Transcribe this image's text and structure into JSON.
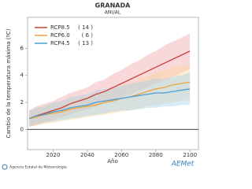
{
  "chart_data": {
    "type": "line",
    "title": "GRANADA",
    "subtitle": "ANUAL",
    "y_label": "Cambio de la temperatura máxima (ºC)",
    "x_label": "Año",
    "x": [
      2006,
      2010,
      2015,
      2020,
      2025,
      2030,
      2035,
      2040,
      2045,
      2050,
      2055,
      2060,
      2065,
      2070,
      2075,
      2080,
      2085,
      2090,
      2095,
      2100
    ],
    "series": [
      {
        "name": "RCP8.5",
        "members": {
          "value": 14,
          "label": "( 14 )"
        },
        "color": "#c8423a",
        "band_color": "#f2a9ab",
        "values": [
          0.8,
          1.0,
          1.2,
          1.4,
          1.6,
          1.9,
          2.1,
          2.3,
          2.6,
          2.8,
          3.1,
          3.4,
          3.7,
          4.0,
          4.3,
          4.6,
          4.9,
          5.2,
          5.5,
          5.8
        ],
        "lower": [
          0.2,
          0.3,
          0.5,
          0.7,
          0.9,
          1.1,
          1.3,
          1.5,
          1.7,
          1.9,
          2.1,
          2.4,
          2.6,
          2.9,
          3.1,
          3.4,
          3.6,
          3.9,
          4.2,
          4.5
        ],
        "upper": [
          1.4,
          1.7,
          1.9,
          2.1,
          2.4,
          2.7,
          2.9,
          3.1,
          3.5,
          3.7,
          4.1,
          4.4,
          4.8,
          5.1,
          5.5,
          5.8,
          6.2,
          6.5,
          6.8,
          7.1
        ]
      },
      {
        "name": "RCP6.0",
        "members": {
          "value": 6,
          "label": "( 6 )"
        },
        "color": "#f0a43a",
        "band_color": "#f8d49a",
        "values": [
          0.8,
          0.9,
          1.1,
          1.2,
          1.3,
          1.5,
          1.6,
          1.7,
          1.8,
          2.0,
          2.1,
          2.3,
          2.4,
          2.6,
          2.8,
          3.0,
          3.1,
          3.3,
          3.4,
          3.5
        ],
        "lower": [
          0.2,
          0.3,
          0.4,
          0.5,
          0.6,
          0.7,
          0.8,
          0.9,
          1.0,
          1.1,
          1.2,
          1.3,
          1.4,
          1.5,
          1.7,
          1.8,
          1.9,
          2.0,
          2.1,
          2.2
        ],
        "upper": [
          1.4,
          1.5,
          1.8,
          1.9,
          2.0,
          2.3,
          2.4,
          2.5,
          2.6,
          2.9,
          3.0,
          3.3,
          3.4,
          3.7,
          3.9,
          4.2,
          4.3,
          4.6,
          4.7,
          4.8
        ]
      },
      {
        "name": "RCP4.5",
        "members": {
          "value": 13,
          "label": "( 13 )"
        },
        "color": "#4a9fd4",
        "band_color": "#a9d3ee",
        "values": [
          0.8,
          1.0,
          1.1,
          1.3,
          1.4,
          1.6,
          1.7,
          1.8,
          2.0,
          2.1,
          2.2,
          2.3,
          2.4,
          2.5,
          2.6,
          2.7,
          2.7,
          2.8,
          2.9,
          3.0
        ],
        "lower": [
          0.2,
          0.4,
          0.5,
          0.6,
          0.7,
          0.8,
          0.9,
          1.0,
          1.1,
          1.2,
          1.3,
          1.4,
          1.4,
          1.5,
          1.6,
          1.6,
          1.7,
          1.7,
          1.8,
          1.8
        ],
        "upper": [
          1.4,
          1.6,
          1.7,
          2.0,
          2.1,
          2.4,
          2.5,
          2.6,
          2.9,
          3.0,
          3.1,
          3.2,
          3.4,
          3.5,
          3.6,
          3.8,
          3.7,
          3.9,
          4.0,
          4.2
        ]
      }
    ],
    "xlim": [
      2005,
      2105
    ],
    "xticks": [
      2020,
      2040,
      2060,
      2080,
      2100
    ],
    "ylim": [
      -1.5,
      8.3
    ],
    "yticks": [
      0,
      2,
      4,
      6
    ],
    "zero_line": true,
    "grid": false,
    "legend": "top-left",
    "footer": {
      "agency": "Agencia Estatal de Meteorología",
      "logo": "AEMet"
    }
  }
}
